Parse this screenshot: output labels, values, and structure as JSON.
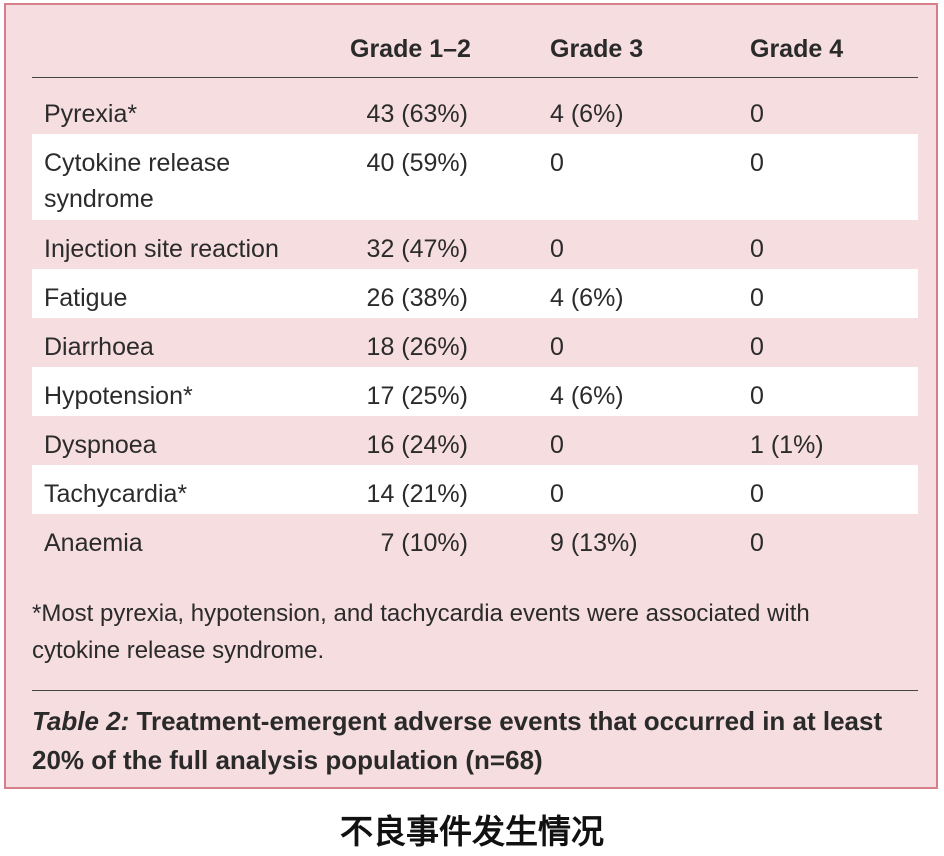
{
  "table": {
    "headers": [
      "",
      "Grade 1–2",
      "Grade 3",
      "Grade 4"
    ],
    "rows": [
      {
        "event": "Pyrexia*",
        "g12": "43 (63%)",
        "g3": "4 (6%)",
        "g4": "0"
      },
      {
        "event": "Cytokine release syndrome",
        "g12": "40 (59%)",
        "g3": "0",
        "g4": "0"
      },
      {
        "event": "Injection site reaction",
        "g12": "32 (47%)",
        "g3": "0",
        "g4": "0"
      },
      {
        "event": "Fatigue",
        "g12": "26 (38%)",
        "g3": "4 (6%)",
        "g4": "0"
      },
      {
        "event": "Diarrhoea",
        "g12": "18 (26%)",
        "g3": "0",
        "g4": "0"
      },
      {
        "event": "Hypotension*",
        "g12": "17 (25%)",
        "g3": "4 (6%)",
        "g4": "0"
      },
      {
        "event": "Dyspnoea",
        "g12": "16 (24%)",
        "g3": "0",
        "g4": "1 (1%)"
      },
      {
        "event": "Tachycardia*",
        "g12": "14 (21%)",
        "g3": "0",
        "g4": "0"
      },
      {
        "event": "Anaemia",
        "g12": "7 (10%)",
        "g3": "9 (13%)",
        "g4": "0"
      }
    ],
    "footnote": "*Most pyrexia, hypotension, and tachycardia events were associated with cytokine release syndrome.",
    "caption_label": "Table 2:",
    "caption_text": " Treatment-emergent adverse events that occurred in at least 20% of the full analysis population (n=68)"
  },
  "subtitle": "不良事件发生情况",
  "colors": {
    "panel_bg": "#f5dde0",
    "panel_border": "#d77e8d",
    "stripe": "#ffffff"
  }
}
